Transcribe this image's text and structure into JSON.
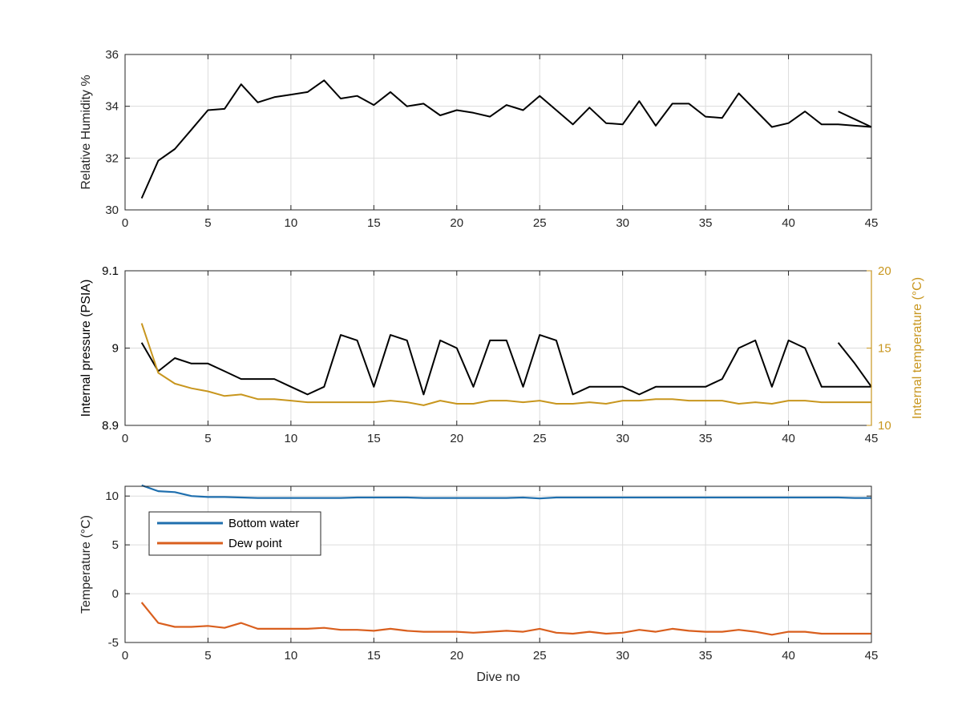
{
  "chart_data": [
    {
      "type": "line",
      "ylabel": "Relative Humidity %",
      "xlim": [
        0,
        45
      ],
      "ylim": [
        30,
        36
      ],
      "xticks": [
        0,
        5,
        10,
        15,
        20,
        25,
        30,
        35,
        40,
        45
      ],
      "yticks": [
        30,
        32,
        34,
        36
      ],
      "grid": true,
      "series": [
        {
          "color": "#000000",
          "x": [
            1,
            2,
            3,
            4,
            5,
            6,
            7,
            8,
            9,
            10,
            11,
            12,
            13,
            14,
            15,
            16,
            17,
            18,
            19,
            20,
            21,
            22,
            23,
            24,
            25,
            26,
            27,
            28,
            29,
            30,
            31,
            32,
            33,
            34,
            35,
            36,
            37,
            38,
            39,
            40,
            41,
            42,
            43,
            44,
            45,
            null,
            43,
            44,
            45
          ],
          "y": [
            30.45,
            31.9,
            32.35,
            33.1,
            33.85,
            33.9,
            34.85,
            34.15,
            34.35,
            34.45,
            34.55,
            35.0,
            34.3,
            34.4,
            34.05,
            34.55,
            34.0,
            34.1,
            33.65,
            33.85,
            33.75,
            33.6,
            34.05,
            33.85,
            34.4,
            33.85,
            33.3,
            33.95,
            33.35,
            33.3,
            34.2,
            33.25,
            34.1,
            34.1,
            33.6,
            33.55,
            34.5,
            33.85,
            33.2,
            33.35,
            33.8,
            33.3,
            33.3,
            33.25,
            33.2,
            null,
            33.8,
            33.5,
            33.2
          ]
        }
      ]
    },
    {
      "type": "line",
      "ylabel": "Internal pressure (PSIA)",
      "ylabel_right": "Internal temperature (°C)",
      "xlim": [
        0,
        45
      ],
      "ylim": [
        8.9,
        9.1
      ],
      "ylim_right": [
        10,
        20
      ],
      "xticks": [
        0,
        5,
        10,
        15,
        20,
        25,
        30,
        35,
        40,
        45
      ],
      "yticks": [
        8.9,
        9,
        9.1
      ],
      "yticks_right": [
        10,
        15,
        20
      ],
      "grid": true,
      "series": [
        {
          "axis": "left",
          "color": "#000000",
          "x": [
            1,
            2,
            3,
            4,
            5,
            6,
            7,
            8,
            9,
            10,
            11,
            12,
            13,
            14,
            15,
            16,
            17,
            18,
            19,
            20,
            21,
            22,
            23,
            24,
            25,
            26,
            27,
            28,
            29,
            30,
            31,
            32,
            33,
            34,
            35,
            36,
            37,
            38,
            39,
            40,
            41,
            42,
            43,
            44,
            45,
            null,
            43,
            44,
            45
          ],
          "y": [
            9.007,
            8.97,
            8.987,
            8.98,
            8.98,
            8.97,
            8.96,
            8.96,
            8.96,
            8.95,
            8.94,
            8.95,
            9.017,
            9.01,
            8.95,
            9.017,
            9.01,
            8.94,
            9.01,
            9.0,
            8.95,
            9.01,
            9.01,
            8.95,
            9.017,
            9.01,
            8.94,
            8.95,
            8.95,
            8.95,
            8.94,
            8.95,
            8.95,
            8.95,
            8.95,
            8.96,
            9.0,
            9.01,
            8.95,
            9.01,
            9.0,
            8.95,
            8.95,
            8.95,
            8.95,
            null,
            9.007,
            8.98,
            8.95
          ]
        },
        {
          "axis": "right",
          "color": "#c8961e",
          "x": [
            1,
            2,
            3,
            4,
            5,
            6,
            7,
            8,
            9,
            10,
            11,
            12,
            13,
            14,
            15,
            16,
            17,
            18,
            19,
            20,
            21,
            22,
            23,
            24,
            25,
            26,
            27,
            28,
            29,
            30,
            31,
            32,
            33,
            34,
            35,
            36,
            37,
            38,
            39,
            40,
            41,
            42,
            43,
            44,
            45
          ],
          "y": [
            16.6,
            13.4,
            12.7,
            12.4,
            12.2,
            11.9,
            12.0,
            11.7,
            11.7,
            11.6,
            11.5,
            11.5,
            11.5,
            11.5,
            11.5,
            11.6,
            11.5,
            11.3,
            11.6,
            11.4,
            11.4,
            11.6,
            11.6,
            11.5,
            11.6,
            11.4,
            11.4,
            11.5,
            11.4,
            11.6,
            11.6,
            11.7,
            11.7,
            11.6,
            11.6,
            11.6,
            11.4,
            11.5,
            11.4,
            11.6,
            11.6,
            11.5,
            11.5,
            11.5,
            11.5
          ]
        }
      ]
    },
    {
      "type": "line",
      "xlabel": "Dive no",
      "ylabel": "Temperature (°C)",
      "xlim": [
        0,
        45
      ],
      "ylim": [
        -5,
        11
      ],
      "xticks": [
        0,
        5,
        10,
        15,
        20,
        25,
        30,
        35,
        40,
        45
      ],
      "yticks": [
        -5,
        0,
        5,
        10
      ],
      "grid": true,
      "legend_position": "top-left",
      "series": [
        {
          "name": "Bottom water",
          "color": "#1f6fae",
          "x": [
            1,
            2,
            3,
            4,
            5,
            6,
            7,
            8,
            9,
            10,
            11,
            12,
            13,
            14,
            15,
            16,
            17,
            18,
            19,
            20,
            21,
            22,
            23,
            24,
            25,
            26,
            27,
            28,
            29,
            30,
            31,
            32,
            33,
            34,
            35,
            36,
            37,
            38,
            39,
            40,
            41,
            42,
            43,
            44,
            45
          ],
          "y": [
            11.1,
            10.5,
            10.4,
            10.0,
            9.9,
            9.9,
            9.85,
            9.8,
            9.8,
            9.8,
            9.8,
            9.8,
            9.8,
            9.85,
            9.85,
            9.85,
            9.85,
            9.8,
            9.8,
            9.8,
            9.8,
            9.8,
            9.8,
            9.85,
            9.75,
            9.85,
            9.85,
            9.85,
            9.85,
            9.85,
            9.85,
            9.85,
            9.85,
            9.85,
            9.85,
            9.85,
            9.85,
            9.85,
            9.85,
            9.85,
            9.85,
            9.85,
            9.85,
            9.8,
            9.8
          ]
        },
        {
          "name": "Dew point",
          "color": "#d95f1e",
          "x": [
            1,
            2,
            3,
            4,
            5,
            6,
            7,
            8,
            9,
            10,
            11,
            12,
            13,
            14,
            15,
            16,
            17,
            18,
            19,
            20,
            21,
            22,
            23,
            24,
            25,
            26,
            27,
            28,
            29,
            30,
            31,
            32,
            33,
            34,
            35,
            36,
            37,
            38,
            39,
            40,
            41,
            42,
            43,
            44,
            45
          ],
          "y": [
            -0.9,
            -3.0,
            -3.4,
            -3.4,
            -3.3,
            -3.5,
            -3.0,
            -3.6,
            -3.6,
            -3.6,
            -3.6,
            -3.5,
            -3.7,
            -3.7,
            -3.8,
            -3.6,
            -3.8,
            -3.9,
            -3.9,
            -3.9,
            -4.0,
            -3.9,
            -3.8,
            -3.9,
            -3.6,
            -4.0,
            -4.1,
            -3.9,
            -4.1,
            -4.0,
            -3.7,
            -3.9,
            -3.6,
            -3.8,
            -3.9,
            -3.9,
            -3.7,
            -3.9,
            -4.2,
            -3.9,
            -3.9,
            -4.1,
            -4.1,
            -4.1,
            -4.1
          ]
        }
      ]
    }
  ]
}
